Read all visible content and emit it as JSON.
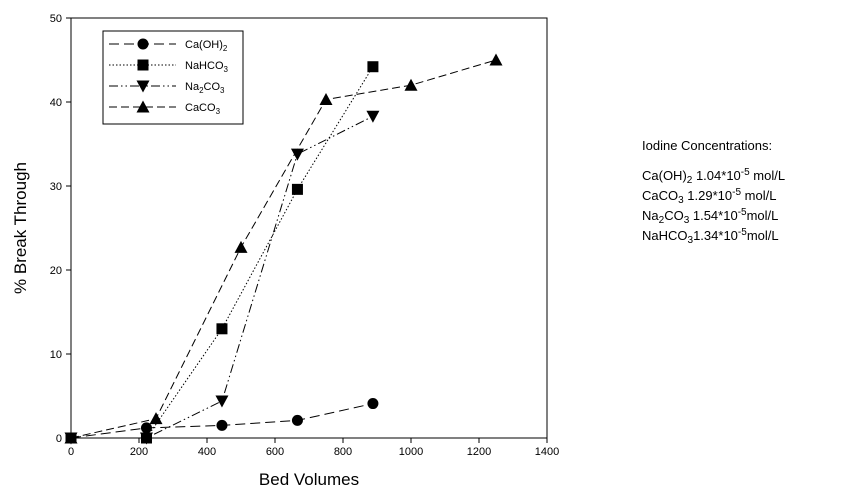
{
  "chart_data": {
    "type": "line",
    "xlabel": "Bed Volumes",
    "ylabel": "% Break Through",
    "xlim": [
      0,
      1400
    ],
    "ylim": [
      0,
      50
    ],
    "x_ticks": [
      "0",
      "200",
      "400",
      "600",
      "800",
      "1000",
      "1200",
      "1400"
    ],
    "y_ticks": [
      "0",
      "10",
      "20",
      "30",
      "40",
      "50"
    ],
    "grid": false,
    "legend_position": "top-left",
    "series": [
      {
        "name": "Ca(OH)2",
        "marker": "circle",
        "line_style": "long-dash",
        "points": [
          [
            0,
            0
          ],
          [
            222,
            1.2
          ],
          [
            444,
            1.5
          ],
          [
            666,
            2.1
          ],
          [
            888,
            4.1
          ]
        ]
      },
      {
        "name": "NaHCO3",
        "marker": "square",
        "line_style": "dotted",
        "points": [
          [
            0,
            0
          ],
          [
            222,
            0
          ],
          [
            444,
            13.0
          ],
          [
            666,
            29.6
          ],
          [
            888,
            44.2
          ]
        ]
      },
      {
        "name": "Na2CO3",
        "marker": "triangle-down",
        "line_style": "dash-dot-dot",
        "points": [
          [
            0,
            0
          ],
          [
            222,
            0
          ],
          [
            444,
            4.4
          ],
          [
            666,
            33.8
          ],
          [
            888,
            38.3
          ]
        ]
      },
      {
        "name": "CaCO3",
        "marker": "triangle-up",
        "line_style": "medium-dash",
        "points": [
          [
            0,
            0
          ],
          [
            250,
            2.3
          ],
          [
            500,
            22.7
          ],
          [
            750,
            40.3
          ],
          [
            1000,
            42.0
          ],
          [
            1250,
            45.0
          ]
        ]
      }
    ]
  },
  "legend": {
    "items": [
      {
        "base": "Ca(OH)",
        "sub": "2"
      },
      {
        "base": "NaHCO",
        "sub": "3"
      },
      {
        "pre": "Na",
        "pre_sub": "2",
        "base": "CO",
        "sub": "3"
      },
      {
        "base": "CaCO",
        "sub": "3"
      }
    ]
  },
  "annotation": {
    "heading": "Iodine Concentrations:",
    "lines": [
      {
        "formula": "Ca(OH)",
        "formula_sub": "2",
        "value": " 1.04*10",
        "exp": "-5",
        "unit": " mol/L"
      },
      {
        "formula": "CaCO",
        "formula_sub": "3",
        "value": " 1.29*10",
        "exp": "-5",
        "unit": " mol/L"
      },
      {
        "formula": "Na",
        "formula_pre_sub": "2",
        "formula_rest": "CO",
        "formula_sub": "3",
        "value": " 1.54*10",
        "exp": "-5",
        "unit": "mol/L"
      },
      {
        "formula": "NaHCO",
        "formula_sub": "3",
        "value": "1.34*10",
        "exp": "-5",
        "unit": "mol/L"
      }
    ]
  }
}
